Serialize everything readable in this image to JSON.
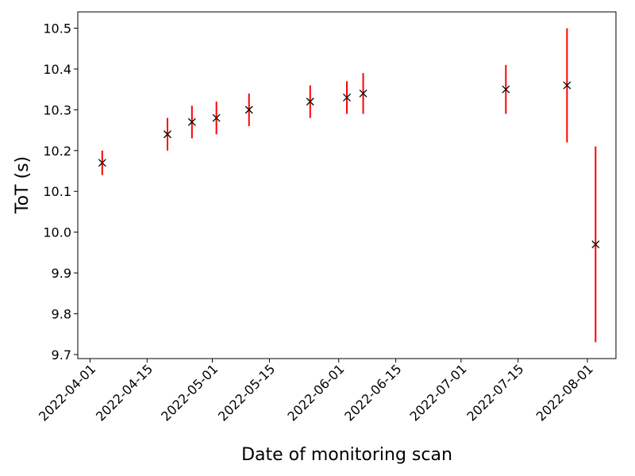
{
  "chart_data": {
    "type": "scatter",
    "title": "",
    "xlabel": "Date of monitoring scan",
    "ylabel": "ToT (s)",
    "x_ticks": [
      "2022-04-01",
      "2022-04-15",
      "2022-05-01",
      "2022-05-15",
      "2022-06-01",
      "2022-06-15",
      "2022-07-01",
      "2022-07-15",
      "2022-08-01"
    ],
    "y_ticks": [
      9.7,
      9.8,
      9.9,
      10.0,
      10.1,
      10.2,
      10.3,
      10.4,
      10.5
    ],
    "y_tick_labels": [
      "9.7",
      "9.8",
      "9.9",
      "10.0",
      "10.1",
      "10.2",
      "10.3",
      "10.4",
      "10.5"
    ],
    "xlim": [
      "2022-03-29",
      "2022-08-08"
    ],
    "ylim": [
      9.69,
      10.54
    ],
    "grid": false,
    "series": [
      {
        "marker": "x",
        "marker_color": "#000000",
        "error_color": "#ff0000",
        "points": [
          {
            "x": "2022-04-04",
            "y": 10.17,
            "yerr_low": 10.14,
            "yerr_high": 10.2
          },
          {
            "x": "2022-04-20",
            "y": 10.24,
            "yerr_low": 10.2,
            "yerr_high": 10.28
          },
          {
            "x": "2022-04-26",
            "y": 10.27,
            "yerr_low": 10.23,
            "yerr_high": 10.31
          },
          {
            "x": "2022-05-02",
            "y": 10.28,
            "yerr_low": 10.24,
            "yerr_high": 10.32
          },
          {
            "x": "2022-05-10",
            "y": 10.3,
            "yerr_low": 10.26,
            "yerr_high": 10.34
          },
          {
            "x": "2022-05-25",
            "y": 10.32,
            "yerr_low": 10.28,
            "yerr_high": 10.36
          },
          {
            "x": "2022-06-03",
            "y": 10.33,
            "yerr_low": 10.29,
            "yerr_high": 10.37
          },
          {
            "x": "2022-06-07",
            "y": 10.34,
            "yerr_low": 10.29,
            "yerr_high": 10.39
          },
          {
            "x": "2022-07-12",
            "y": 10.35,
            "yerr_low": 10.29,
            "yerr_high": 10.41
          },
          {
            "x": "2022-07-27",
            "y": 10.36,
            "yerr_low": 10.22,
            "yerr_high": 10.5
          },
          {
            "x": "2022-08-03",
            "y": 9.97,
            "yerr_low": 9.73,
            "yerr_high": 10.21
          }
        ]
      }
    ]
  }
}
